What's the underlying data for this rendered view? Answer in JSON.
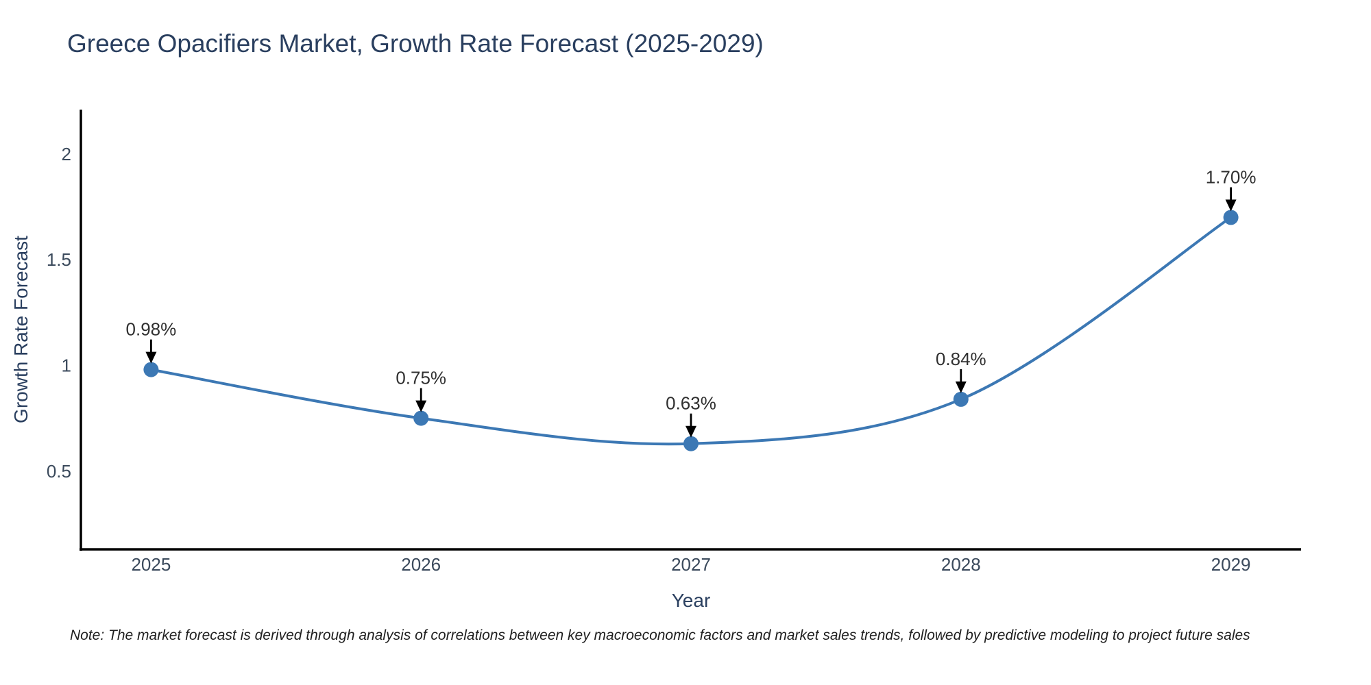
{
  "title": "Greece Opacifiers Market, Growth Rate Forecast (2025-2029)",
  "note": "Note: The market forecast is derived through analysis of correlations between key macroeconomic factors and market sales trends, followed by predictive modeling to project future sales",
  "chart_data": {
    "type": "line",
    "title": "Greece Opacifiers Market, Growth Rate Forecast (2025-2029)",
    "x": [
      2025,
      2026,
      2027,
      2028,
      2029
    ],
    "y": [
      0.98,
      0.75,
      0.63,
      0.84,
      1.7
    ],
    "point_labels": [
      "0.98%",
      "0.75%",
      "0.63%",
      "0.84%",
      "1.70%"
    ],
    "series": [
      {
        "name": "Growth Rate Forecast",
        "values": [
          0.98,
          0.75,
          0.63,
          0.84,
          1.7
        ]
      }
    ],
    "xlabel": "Year",
    "ylabel": "Growth Rate Forecast",
    "yticks": [
      0.5,
      1,
      1.5,
      2
    ],
    "ytick_labels": [
      "0.5",
      "1",
      "1.5",
      "2"
    ],
    "xtick_labels": [
      "2025",
      "2026",
      "2027",
      "2028",
      "2029"
    ],
    "ylim": [
      0.13,
      2.21
    ],
    "xlim": [
      2024.74,
      2029.26
    ],
    "grid": false,
    "legend": "none",
    "line_shape": "spline",
    "annotations": "value labels with black arrows pointing down to each marker",
    "colors": {
      "line": "#3c78b4",
      "marker": "#3c78b4",
      "arrow": "#000000",
      "axis": "#000000",
      "title": "#2a3f5f",
      "tick": "#3b4a5c",
      "axis_label": "#2a3f5f",
      "point_label": "#303030",
      "background": "#ffffff"
    }
  }
}
